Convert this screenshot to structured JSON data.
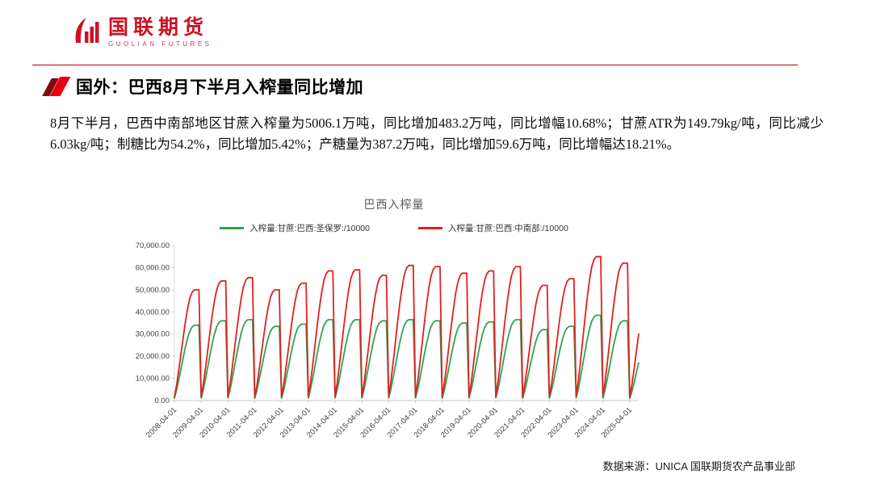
{
  "header": {
    "logo_title": "国联期货",
    "logo_subtitle": "GUOLIAN FUTURES"
  },
  "slide": {
    "title": "国外：巴西8月下半月入榨量同比增加",
    "body": "8月下半月，巴西中南部地区甘蔗入榨量为5006.1万吨，同比增加483.2万吨，同比增幅10.68%；甘蔗ATR为149.79kg/吨，同比减少6.03kg/吨；制糖比为54.2%，同比增加5.42%；产糖量为387.2万吨，同比增加59.6万吨，同比增幅达18.21%。",
    "source": "数据来源：UNICA 国联期货农产品事业部"
  },
  "chart_data": {
    "type": "line",
    "title": "巴西入榨量",
    "description": "Cumulative sugarcane crushing volume per season (/10000 t). Each season rises from ~0 in April to its peak, then resets the following April (sawtooth).",
    "legend": [
      {
        "label": "入榨量:甘蔗:巴西:圣保罗:/10000",
        "color": "#2EA44F"
      },
      {
        "label": "入榨量:甘蔗:巴西:中南部:/10000",
        "color": "#E02020"
      }
    ],
    "ylim": [
      0,
      70000
    ],
    "y_tick_labels": [
      "70,000.00",
      "60,000.00",
      "50,000.00",
      "40,000.00",
      "30,000.00",
      "20,000.00",
      "10,000.00",
      "0.00"
    ],
    "x_tick_labels": [
      "2008-04-01",
      "2009-04-01",
      "2010-04-01",
      "2011-04-01",
      "2012-04-01",
      "2013-04-01",
      "2014-04-01",
      "2015-04-01",
      "2016-04-01",
      "2017-04-01",
      "2018-04-01",
      "2019-04-01",
      "2020-04-01",
      "2021-04-01",
      "2022-04-01",
      "2023-04-01",
      "2024-04-01",
      "2025-04-01"
    ],
    "season_start_years": [
      2008,
      2009,
      2010,
      2011,
      2012,
      2013,
      2014,
      2015,
      2016,
      2017,
      2018,
      2019,
      2020,
      2021,
      2022,
      2023,
      2024
    ],
    "monthly_ramp_profile": [
      0.03,
      0.14,
      0.28,
      0.43,
      0.58,
      0.72,
      0.84,
      0.93,
      0.98,
      1.0,
      1.0,
      1.0
    ],
    "partial_months": 5,
    "series": [
      {
        "name": "入榨量:甘蔗:巴西:圣保罗:/10000",
        "color": "#2EA44F",
        "season_peaks": [
          34000,
          36000,
          36500,
          33500,
          34500,
          36500,
          36500,
          36000,
          36500,
          36000,
          35000,
          35500,
          36500,
          32000,
          33500,
          38500,
          36000
        ],
        "partial_2025_end": 17000
      },
      {
        "name": "入榨量:甘蔗:巴西:中南部:/10000",
        "color": "#E02020",
        "season_peaks": [
          50000,
          54000,
          55500,
          50000,
          53000,
          58500,
          59000,
          56500,
          61000,
          60500,
          57500,
          58500,
          60500,
          52000,
          55000,
          65000,
          62000
        ],
        "partial_2025_end": 30000
      }
    ],
    "grid": false,
    "legend_position": "top-center"
  }
}
